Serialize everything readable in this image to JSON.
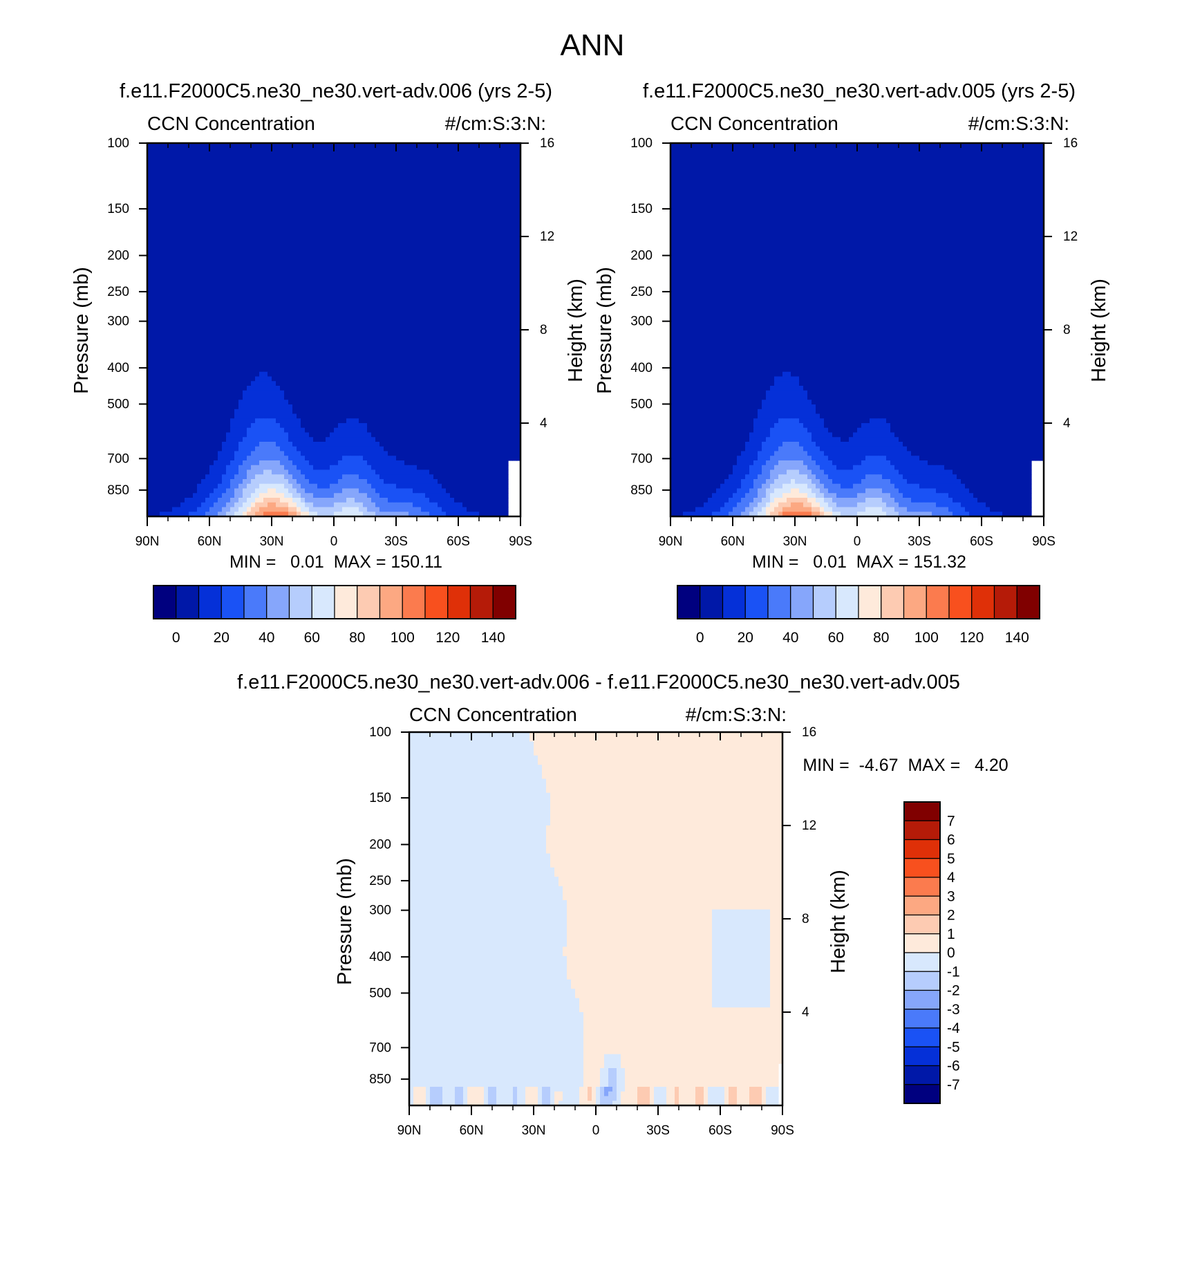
{
  "figure": {
    "title": "ANN"
  },
  "colors": {
    "field_palette": [
      "#00007f",
      "#0018a8",
      "#0530d8",
      "#1a52f5",
      "#4a7afa",
      "#86a6fb",
      "#b6cdfd",
      "#d8e8fd",
      "#feeadb",
      "#fdcbb2",
      "#fca882",
      "#fb7b4e",
      "#f8501e",
      "#df3008",
      "#b51b08",
      "#800000"
    ],
    "diff_palette": [
      "#00007f",
      "#0018a8",
      "#0530d8",
      "#1a52f5",
      "#4a7afa",
      "#86a6fb",
      "#b6cdfd",
      "#d8e8fd",
      "#feeadb",
      "#fdcbb2",
      "#fca882",
      "#fb7b4e",
      "#f8501e",
      "#df3008",
      "#b51b08",
      "#800000"
    ]
  },
  "panels": [
    {
      "title": "f.e11.F2000C5.ne30_ne30.vert-adv.006 (yrs 2-5)",
      "left_label": "CCN Concentration",
      "right_label": "#/cm:S:3:N:",
      "stats": "MIN =   0.01  MAX = 150.11",
      "ylabel": "Pressure (mb)",
      "y2label": "Height (km)"
    },
    {
      "title": "f.e11.F2000C5.ne30_ne30.vert-adv.005 (yrs 2-5)",
      "left_label": "CCN Concentration",
      "right_label": "#/cm:S:3:N:",
      "stats": "MIN =   0.01  MAX = 151.32",
      "ylabel": "Pressure (mb)",
      "y2label": "Height (km)"
    },
    {
      "title": "f.e11.F2000C5.ne30_ne30.vert-adv.006 - f.e11.F2000C5.ne30_ne30.vert-adv.005",
      "left_label": "CCN Concentration",
      "right_label": "#/cm:S:3:N:",
      "stats": "MIN =  -4.67  MAX =   4.20",
      "ylabel": "Pressure (mb)",
      "y2label": "Height (km)"
    }
  ],
  "chart_data": [
    {
      "type": "heatmap",
      "title": "f.e11.F2000C5.ne30_ne30.vert-adv.006 (yrs 2-5)",
      "x_ticks": [
        "90N",
        "60N",
        "30N",
        "0",
        "30S",
        "60S",
        "90S"
      ],
      "x_values": [
        90,
        60,
        30,
        0,
        -30,
        -60,
        -90
      ],
      "y_ticks": [
        "100",
        "150",
        "200",
        "250",
        "300",
        "400",
        "500",
        "700",
        "850"
      ],
      "y_values": [
        100,
        150,
        200,
        250,
        300,
        400,
        500,
        700,
        850
      ],
      "y_log": true,
      "ylim": [
        100,
        1000
      ],
      "y2_ticks": [
        "16",
        "12",
        "8",
        "4"
      ],
      "y2_values": [
        16,
        12,
        8,
        4
      ],
      "colorbar_labels": [
        "0",
        "20",
        "40",
        "60",
        "80",
        "100",
        "120",
        "140"
      ],
      "colorbar_levels": [
        -10,
        0,
        10,
        20,
        30,
        40,
        50,
        60,
        70,
        80,
        90,
        100,
        110,
        120,
        130,
        140,
        150
      ],
      "stats": {
        "min": 0.01,
        "max": 150.11
      },
      "peak": {
        "lat": 28,
        "pressure": 1000,
        "value": 150.11
      }
    },
    {
      "type": "heatmap",
      "title": "f.e11.F2000C5.ne30_ne30.vert-adv.005 (yrs 2-5)",
      "x_ticks": [
        "90N",
        "60N",
        "30N",
        "0",
        "30S",
        "60S",
        "90S"
      ],
      "x_values": [
        90,
        60,
        30,
        0,
        -30,
        -60,
        -90
      ],
      "y_ticks": [
        "100",
        "150",
        "200",
        "250",
        "300",
        "400",
        "500",
        "700",
        "850"
      ],
      "y_values": [
        100,
        150,
        200,
        250,
        300,
        400,
        500,
        700,
        850
      ],
      "y_log": true,
      "ylim": [
        100,
        1000
      ],
      "y2_ticks": [
        "16",
        "12",
        "8",
        "4"
      ],
      "y2_values": [
        16,
        12,
        8,
        4
      ],
      "colorbar_labels": [
        "0",
        "20",
        "40",
        "60",
        "80",
        "100",
        "120",
        "140"
      ],
      "colorbar_levels": [
        -10,
        0,
        10,
        20,
        30,
        40,
        50,
        60,
        70,
        80,
        90,
        100,
        110,
        120,
        130,
        140,
        150
      ],
      "stats": {
        "min": 0.01,
        "max": 151.32
      },
      "peak": {
        "lat": 28,
        "pressure": 1000,
        "value": 151.32
      }
    },
    {
      "type": "heatmap",
      "title": "f.e11.F2000C5.ne30_ne30.vert-adv.006 - f.e11.F2000C5.ne30_ne30.vert-adv.005",
      "x_ticks": [
        "90N",
        "60N",
        "30N",
        "0",
        "30S",
        "60S",
        "90S"
      ],
      "x_values": [
        90,
        60,
        30,
        0,
        -30,
        -60,
        -90
      ],
      "y_ticks": [
        "100",
        "150",
        "200",
        "250",
        "300",
        "400",
        "500",
        "700",
        "850"
      ],
      "y_values": [
        100,
        150,
        200,
        250,
        300,
        400,
        500,
        700,
        850
      ],
      "y_log": true,
      "ylim": [
        100,
        1000
      ],
      "y2_ticks": [
        "16",
        "12",
        "8",
        "4"
      ],
      "y2_values": [
        16,
        12,
        8,
        4
      ],
      "colorbar_labels": [
        "7",
        "6",
        "5",
        "4",
        "3",
        "2",
        "1",
        "0",
        "-1",
        "-2",
        "-3",
        "-4",
        "-5",
        "-6",
        "-7"
      ],
      "colorbar_levels": [
        -8,
        -7,
        -6,
        -5,
        -4,
        -3,
        -2,
        -1,
        0,
        1,
        2,
        3,
        4,
        5,
        6,
        7,
        8
      ],
      "stats": {
        "min": -4.67,
        "max": 4.2
      }
    }
  ]
}
